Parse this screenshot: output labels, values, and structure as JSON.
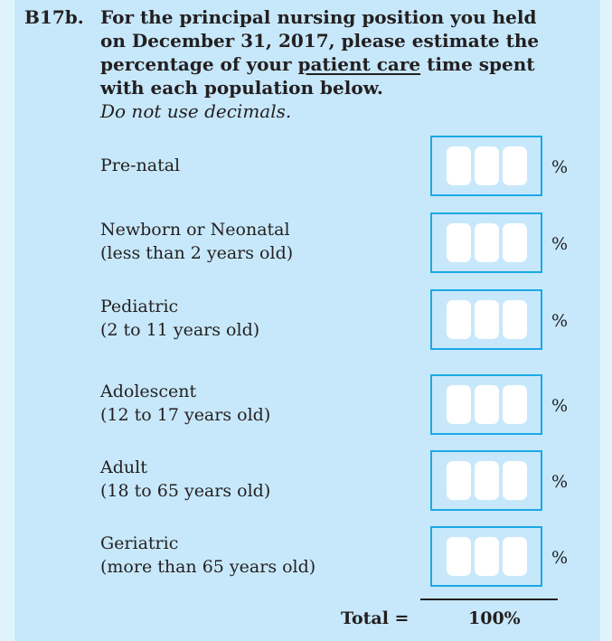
{
  "question": {
    "number": "B17b.",
    "text_before": "For the principal nursing position you held on December 31, 2017, please estimate the percentage of your ",
    "text_underlined": "patient care",
    "text_after": " time spent with each population below.",
    "note": "Do not use decimals."
  },
  "rows": [
    {
      "line1": "Pre-natal",
      "line2": "",
      "unit": "%"
    },
    {
      "line1": "Newborn or Neonatal",
      "line2": "(less than 2 years old)",
      "unit": "%"
    },
    {
      "line1": "Pediatric",
      "line2": "(2 to 11 years old)",
      "unit": "%"
    },
    {
      "line1": "Adolescent",
      "line2": "(12 to 17 years old)",
      "unit": "%"
    },
    {
      "line1": "Adult",
      "line2": "(18 to 65 years old)",
      "unit": "%"
    },
    {
      "line1": "Geriatric",
      "line2": "(more than 65 years old)",
      "unit": "%"
    }
  ],
  "total": {
    "label": "Total =",
    "value": "100%"
  },
  "colors": {
    "panel": "#c7e8fa",
    "background": "#e0f3fd",
    "box_border": "#1aa9e6"
  }
}
